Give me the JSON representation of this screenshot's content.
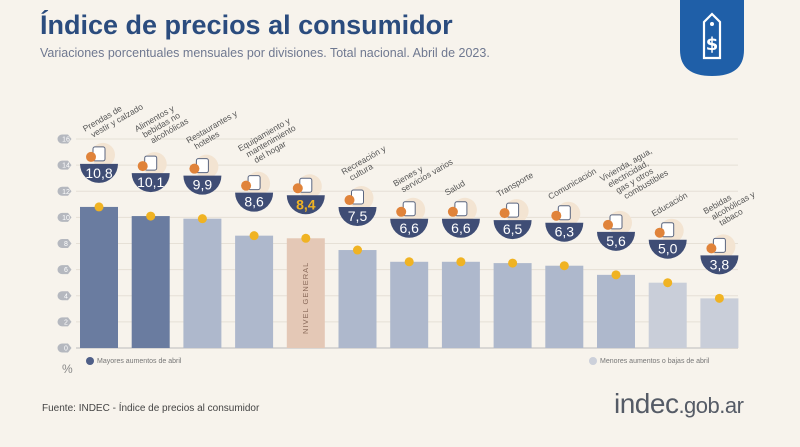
{
  "title": "Índice de precios al consumidor",
  "subtitle": "Variaciones porcentuales mensuales por divisiones. Total nacional. Abril de 2023.",
  "source": "Fuente: INDEC - Índice de precios al consumidor",
  "brand": {
    "main": "indec",
    "suffix": ".gob.ar"
  },
  "colors": {
    "top": "#6a7ca0",
    "mid": "#aeb8cc",
    "low": "#c9ced9",
    "general": "#e4c8b6",
    "badge": "#3f4d75",
    "dot": "#f0b323",
    "title": "#2b4c7e"
  },
  "legend": {
    "top": "Mayores aumentos de abril",
    "low": "Menores aumentos o bajas de abril"
  },
  "chart_data": {
    "type": "bar",
    "ylabel": "%",
    "ylim": [
      0,
      16
    ],
    "yticks": [
      "0",
      "2",
      "4",
      "6",
      "8",
      "10",
      "12",
      "14",
      "16"
    ],
    "grid": true,
    "categories": [
      "Prendas de vestir y calzado",
      "Alimentos y bebidas no alcohólicas",
      "Restaurantes y hoteles",
      "Equipamiento y mantenimiento del hogar",
      "NIVEL GENERAL",
      "Recreación y cultura",
      "Bienes y servicios varios",
      "Salud",
      "Transporte",
      "Comunicación",
      "Vivienda, agua, electricidad, gas y otros combustibles",
      "Educación",
      "Bebidas alcohólicas y tabaco"
    ],
    "values": [
      10.8,
      10.1,
      9.9,
      8.6,
      8.4,
      7.5,
      6.6,
      6.6,
      6.5,
      6.3,
      5.6,
      5.0,
      3.8
    ],
    "value_labels": [
      "10,8",
      "10,1",
      "9,9",
      "8,6",
      "8,4",
      "7,5",
      "6,6",
      "6,6",
      "6,5",
      "6,3",
      "5,6",
      "5,0",
      "3,8"
    ],
    "groups": [
      "top",
      "top",
      "mid",
      "mid",
      "general",
      "mid",
      "mid",
      "mid",
      "mid",
      "mid",
      "mid",
      "low",
      "low"
    ]
  }
}
